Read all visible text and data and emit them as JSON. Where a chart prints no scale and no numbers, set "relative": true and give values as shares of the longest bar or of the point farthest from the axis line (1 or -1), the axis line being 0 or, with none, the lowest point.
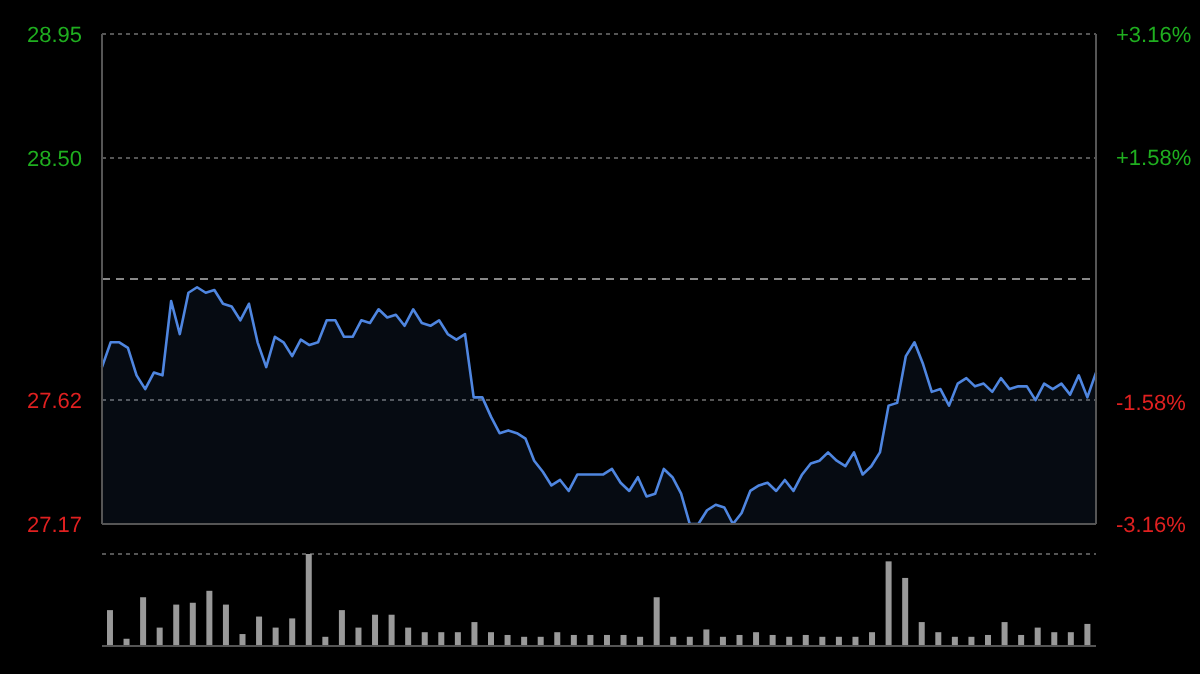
{
  "chart_data": [
    {
      "type": "area",
      "categories": [
        null,
        null,
        null,
        null,
        null,
        null,
        null,
        null,
        null,
        null,
        null,
        null,
        null,
        null,
        null,
        null,
        null,
        null,
        null,
        null,
        null,
        null,
        null,
        null,
        null,
        null,
        null,
        null,
        null,
        null,
        null,
        null,
        null,
        null,
        null,
        null,
        null,
        null,
        null,
        null,
        null,
        null,
        null,
        null,
        null,
        null,
        null,
        null,
        null,
        null,
        null,
        null,
        null,
        null,
        null,
        null,
        null,
        null,
        null,
        null,
        null,
        null,
        null,
        null,
        null,
        null,
        null,
        null,
        null,
        null,
        null,
        null,
        null,
        null,
        null,
        null,
        null,
        null,
        null,
        null,
        null,
        null,
        null,
        null,
        null,
        null,
        null,
        null,
        null,
        null,
        null,
        null,
        null,
        null,
        null,
        null,
        null,
        null,
        null,
        null,
        null,
        null,
        null,
        null,
        null,
        null,
        null,
        null,
        null,
        null,
        null,
        null,
        null,
        null,
        null,
        null
      ],
      "series": [
        {
          "color": "#4f86e0",
          "values": [
            27.74,
            27.83,
            27.83,
            27.81,
            27.71,
            27.66,
            27.72,
            27.71,
            27.98,
            27.86,
            28.01,
            28.03,
            28.01,
            28.02,
            27.97,
            27.96,
            27.91,
            27.97,
            27.83,
            27.74,
            27.85,
            27.83,
            27.78,
            27.84,
            27.82,
            27.83,
            27.91,
            27.91,
            27.85,
            27.85,
            27.91,
            27.9,
            27.95,
            27.92,
            27.93,
            27.89,
            27.95,
            27.9,
            27.89,
            27.91,
            27.86,
            27.84,
            27.86,
            27.63,
            27.63,
            27.56,
            27.5,
            27.51,
            27.5,
            27.48,
            27.4,
            27.36,
            27.31,
            27.33,
            27.29,
            27.35,
            27.35,
            27.35,
            27.35,
            27.37,
            27.32,
            27.29,
            27.34,
            27.27,
            27.28,
            27.37,
            27.34,
            27.28,
            27.17,
            27.17,
            27.22,
            27.24,
            27.23,
            27.17,
            27.21,
            27.29,
            27.31,
            27.32,
            27.29,
            27.33,
            27.29,
            27.35,
            27.39,
            27.4,
            27.43,
            27.4,
            27.38,
            27.43,
            27.35,
            27.38,
            27.43,
            27.6,
            27.61,
            27.78,
            27.83,
            27.75,
            27.65,
            27.66,
            27.6,
            27.68,
            27.7,
            27.67,
            27.68,
            27.65,
            27.7,
            27.66,
            27.67,
            27.67,
            27.62,
            27.68,
            27.66,
            27.68,
            27.64,
            27.71,
            27.63,
            27.72
          ]
        }
      ],
      "ylim": [
        27.17,
        28.95
      ],
      "yticks": [
        27.17,
        27.62,
        {
          "value": 28.5,
          "label": "28.50"
        },
        28.95
      ],
      "y2lim": [
        -3.16,
        3.16
      ],
      "y2ticks": [
        {
          "value": -3.16,
          "label": "-3.16%"
        },
        {
          "value": -1.58,
          "label": "-1.58%"
        },
        {
          "value": 1.58,
          "label": "+1.58%"
        },
        {
          "value": 3.16,
          "label": "+3.16%"
        }
      ],
      "ref_lines": [
        {
          "axis": "y",
          "value": 28.06,
          "color": "#888888",
          "line_style": "dashed"
        }
      ],
      "grid": "y",
      "tick_labels": "y",
      "legend": false
    },
    {
      "type": "bar",
      "relative": true,
      "categories": [
        null,
        null,
        null,
        null,
        null,
        null,
        null,
        null,
        null,
        null,
        null,
        null,
        null,
        null,
        null,
        null,
        null,
        null,
        null,
        null,
        null,
        null,
        null,
        null,
        null,
        null,
        null,
        null,
        null,
        null,
        null,
        null,
        null,
        null,
        null,
        null,
        null,
        null,
        null,
        null,
        null,
        null,
        null,
        null,
        null,
        null,
        null,
        null,
        null,
        null,
        null,
        null,
        null,
        null,
        null,
        null,
        null,
        null,
        null,
        null
      ],
      "series": [
        {
          "color": "#999999",
          "values": [
            0.39,
            0.08,
            0.53,
            0.2,
            0.45,
            0.47,
            0.6,
            0.45,
            0.13,
            0.32,
            0.2,
            0.3,
            1,
            0.1,
            0.39,
            0.2,
            0.34,
            0.34,
            0.2,
            0.15,
            0.15,
            0.15,
            0.26,
            0.15,
            0.12,
            0.1,
            0.1,
            0.15,
            0.12,
            0.12,
            0.12,
            0.12,
            0.1,
            0.53,
            0.1,
            0.1,
            0.18,
            0.1,
            0.12,
            0.15,
            0.12,
            0.1,
            0.12,
            0.1,
            0.1,
            0.1,
            0.15,
            0.92,
            0.74,
            0.26,
            0.15,
            0.1,
            0.1,
            0.12,
            0.26,
            0.12,
            0.2,
            0.15,
            0.15,
            0.24
          ]
        }
      ],
      "grid": "y",
      "tick_labels": false,
      "legend": false
    }
  ]
}
